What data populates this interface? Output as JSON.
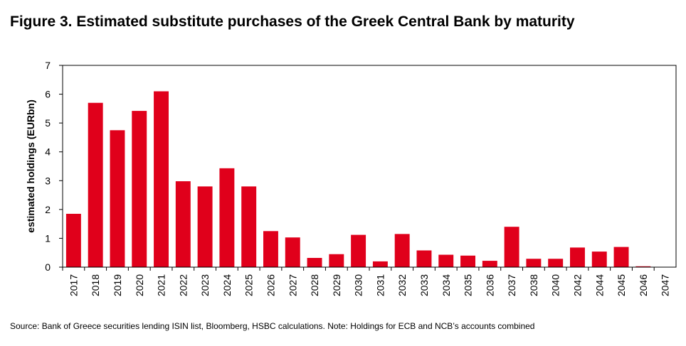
{
  "title": "Figure 3. Estimated substitute purchases of the Greek Central Bank by maturity",
  "source": "Source: Bank of Greece securities lending ISIN list, Bloomberg, HSBC calculations. Note: Holdings for ECB and NCB’s accounts combined",
  "colors": {
    "bar": "#e0001b",
    "axis": "#000000",
    "background": "#ffffff"
  },
  "chart_data": {
    "type": "bar",
    "title": "Figure 3. Estimated substitute purchases of the Greek Central Bank by maturity",
    "xlabel": "",
    "ylabel": "estimated holdings (EURbn)",
    "ylim": [
      0,
      7
    ],
    "yticks": [
      "0",
      "1",
      "2",
      "3",
      "4",
      "5",
      "6",
      "7"
    ],
    "grid": false,
    "categories": [
      "2017",
      "2018",
      "2019",
      "2020",
      "2021",
      "2022",
      "2023",
      "2024",
      "2025",
      "2026",
      "2027",
      "2028",
      "2029",
      "2030",
      "2031",
      "2032",
      "2033",
      "2034",
      "2035",
      "2036",
      "2037",
      "2038",
      "2040",
      "2042",
      "2044",
      "2045",
      "2046",
      "2047"
    ],
    "values": [
      1.85,
      5.7,
      4.75,
      5.42,
      6.1,
      2.98,
      2.8,
      3.43,
      2.8,
      1.25,
      1.03,
      0.32,
      0.45,
      1.12,
      0.2,
      1.15,
      0.58,
      0.43,
      0.4,
      0.22,
      1.4,
      0.29,
      0.29,
      0.68,
      0.54,
      0.7,
      0.03,
      0.0
    ]
  }
}
